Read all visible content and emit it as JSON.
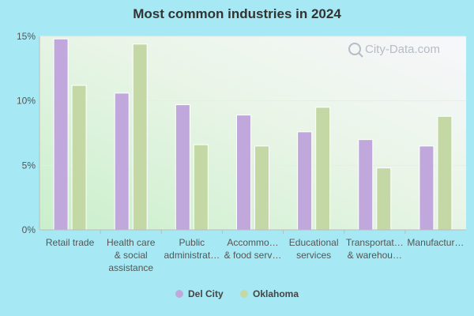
{
  "chart_data": {
    "type": "bar",
    "title": "Most common industries in 2024",
    "categories": [
      [
        "Retail trade"
      ],
      [
        "Health care",
        "& social",
        "assistance"
      ],
      [
        "Public",
        "administrat…"
      ],
      [
        "Accommo…",
        "& food serv…"
      ],
      [
        "Educational",
        "services"
      ],
      [
        "Transportat…",
        "& warehou…"
      ],
      [
        "Manufactur…"
      ]
    ],
    "series": [
      {
        "name": "Del City",
        "color": "#c0a8dc",
        "values": [
          14.8,
          10.6,
          9.7,
          8.9,
          7.6,
          7.0,
          6.5
        ]
      },
      {
        "name": "Oklahoma",
        "color": "#c4d8a6",
        "values": [
          11.2,
          14.4,
          6.6,
          6.5,
          9.5,
          4.8,
          8.8
        ]
      }
    ],
    "ylim": [
      0,
      15
    ],
    "yticks": [
      {
        "value": 0,
        "label": "0%"
      },
      {
        "value": 5,
        "label": "5%"
      },
      {
        "value": 10,
        "label": "10%"
      },
      {
        "value": 15,
        "label": "15%"
      }
    ],
    "xlabel": "",
    "ylabel": "",
    "grid": true,
    "legend": "bottom-center"
  },
  "watermark": {
    "text": "City-Data.com",
    "icon": "search-icon"
  }
}
